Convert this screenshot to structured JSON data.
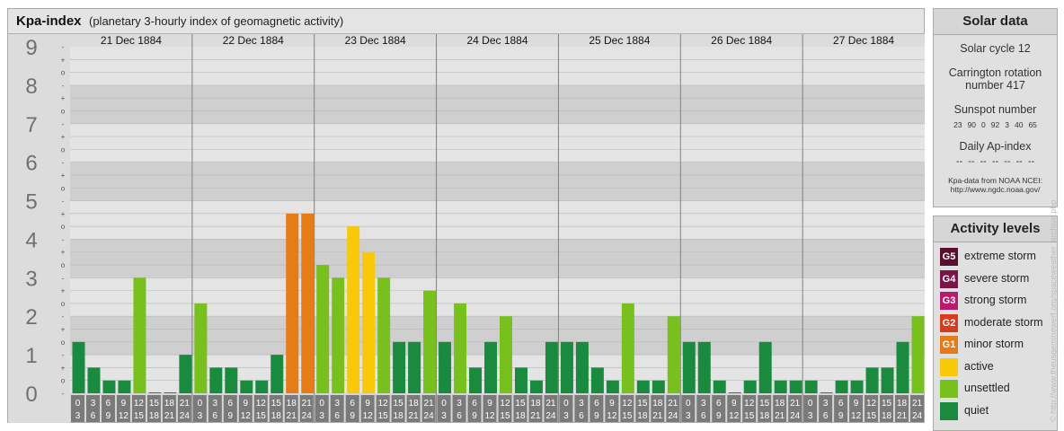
{
  "title": "Kpa-index",
  "subtitle": "(planetary 3-hourly index of geomagnetic activity)",
  "chart_data": {
    "type": "bar",
    "days": [
      "21 Dec 1884",
      "22 Dec 1884",
      "23 Dec 1884",
      "24 Dec 1884",
      "25 Dec 1884",
      "26 Dec 1884",
      "27 Dec 1884"
    ],
    "interval_start": [
      "0",
      "3",
      "6",
      "9",
      "12",
      "15",
      "18",
      "21"
    ],
    "interval_end": [
      "3",
      "6",
      "9",
      "12",
      "15",
      "18",
      "21",
      "24"
    ],
    "values": [
      1.333,
      0.667,
      0.333,
      0.333,
      3.0,
      0.0,
      0.0,
      1.0,
      2.333,
      0.667,
      0.667,
      0.333,
      0.333,
      1.0,
      4.667,
      4.667,
      3.333,
      3.0,
      4.333,
      3.667,
      3.0,
      1.333,
      1.333,
      2.667,
      1.333,
      2.333,
      0.667,
      1.333,
      2.0,
      0.667,
      0.333,
      1.333,
      1.333,
      1.333,
      0.667,
      0.333,
      2.333,
      0.333,
      0.333,
      2.0,
      1.333,
      1.333,
      0.333,
      0.0,
      0.333,
      1.333,
      0.333,
      0.333,
      0.333,
      0.0,
      0.333,
      0.333,
      0.667,
      0.667,
      1.333,
      2.0
    ],
    "ylim": [
      0,
      9
    ],
    "y_ticks": [
      "0",
      "1",
      "2",
      "3",
      "4",
      "5",
      "6",
      "7",
      "8",
      "9"
    ],
    "sub_ticks": [
      "-",
      "o",
      "+"
    ],
    "colors": {
      "quiet": "#1a8a3e",
      "unsettled": "#78c01e",
      "active": "#f9c80a",
      "minor": "#e57c18"
    },
    "grid": true
  },
  "solar": {
    "heading": "Solar data",
    "cycle": "Solar cycle 12",
    "carrington_1": "Carrington rotation",
    "carrington_2": "number 417",
    "sunspot_heading": "Sunspot number",
    "sunspots": [
      "23",
      "90",
      "0",
      "92",
      "3",
      "40",
      "65"
    ],
    "ap_heading": "Daily Ap-index",
    "ap_values": [
      "--",
      "--",
      "--",
      "--",
      "--",
      "--",
      "--"
    ],
    "credit_1": "Kpa-data from NOAA NCEI:",
    "credit_2": "http://www.ngdc.noaa.gov/"
  },
  "levels": {
    "heading": "Activity levels",
    "items": [
      {
        "badge": "G5",
        "label": "extreme storm",
        "color": "#5a0f2e"
      },
      {
        "badge": "G4",
        "label": "severe storm",
        "color": "#7a1348"
      },
      {
        "badge": "G3",
        "label": "strong storm",
        "color": "#b81a6e"
      },
      {
        "badge": "G2",
        "label": "moderate storm",
        "color": "#d63d1e"
      },
      {
        "badge": "G1",
        "label": "minor storm",
        "color": "#e57c18"
      },
      {
        "badge": "",
        "label": "active",
        "color": "#f9c80a"
      },
      {
        "badge": "",
        "label": "unsettled",
        "color": "#78c01e"
      },
      {
        "badge": "",
        "label": "quiet",
        "color": "#1a8a3e"
      }
    ]
  },
  "watermark": "© http://www.theusgeminewerf.org/spaceweather_archive.php"
}
